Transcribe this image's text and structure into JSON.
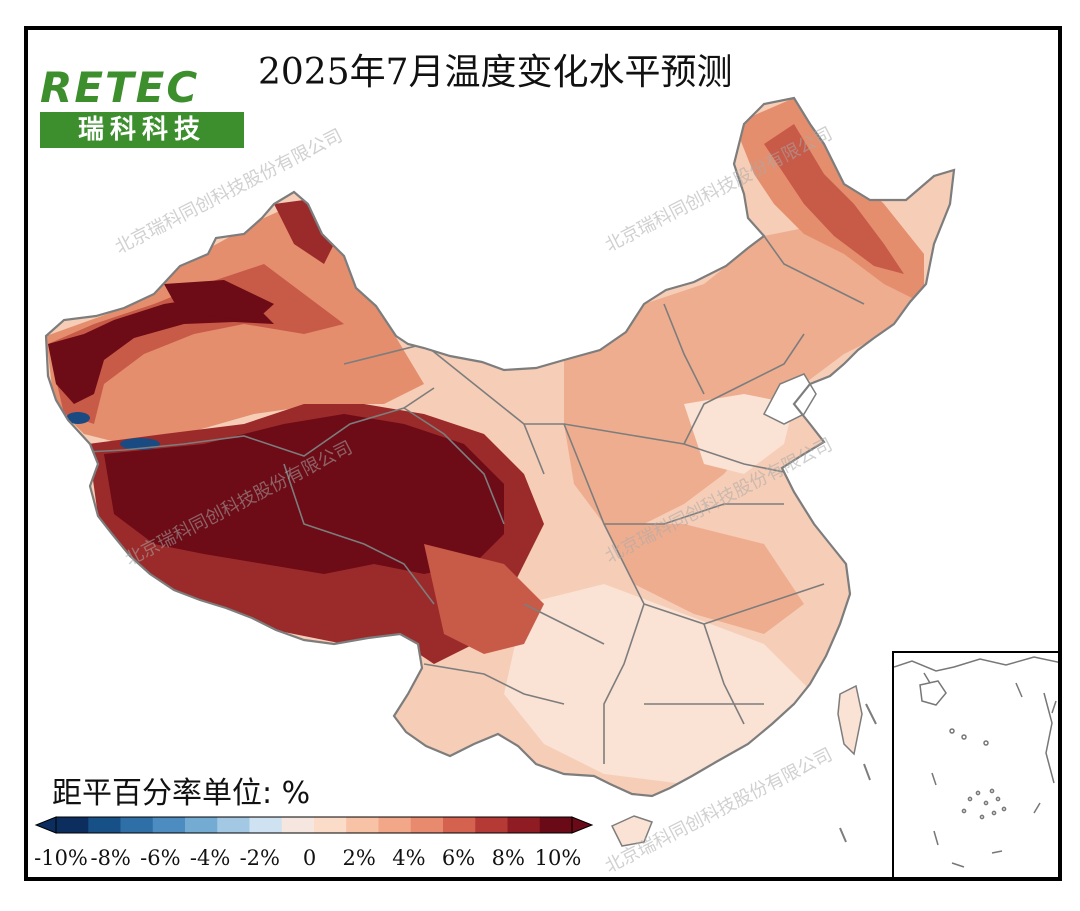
{
  "title": "2025年7月温度变化水平预测",
  "logo": {
    "brand": "RETEC",
    "name": "瑞科科技"
  },
  "watermark": "北京瑞科同创科技股份有限公司",
  "legend": {
    "unit_label": "距平百分率单位: %",
    "ticks": [
      "-10%",
      "-8%",
      "-6%",
      "-4%",
      "-2%",
      "0",
      "2%",
      "4%",
      "6%",
      "8%",
      "10%"
    ],
    "colors": [
      "#0b2e5e",
      "#174f87",
      "#2f6fa8",
      "#4c8cc0",
      "#74abd3",
      "#a3c8e4",
      "#cfe2f1",
      "#f5e6e0",
      "#fbdcc9",
      "#f7c2a6",
      "#f2a789",
      "#e88a6e",
      "#d4624f",
      "#b53a36",
      "#8f1b23",
      "#6a0a17"
    ]
  },
  "map": {
    "colors": {
      "deep": "#6d0b16",
      "dark": "#9b2a2a",
      "mid": "#c85a48",
      "warm": "#e48e6e",
      "light": "#efad8f",
      "pale": "#f6cdb6",
      "palest": "#fae2d4",
      "cold": "#1a4a82",
      "border": "#7d7d7d",
      "water": "#ffffff"
    }
  }
}
